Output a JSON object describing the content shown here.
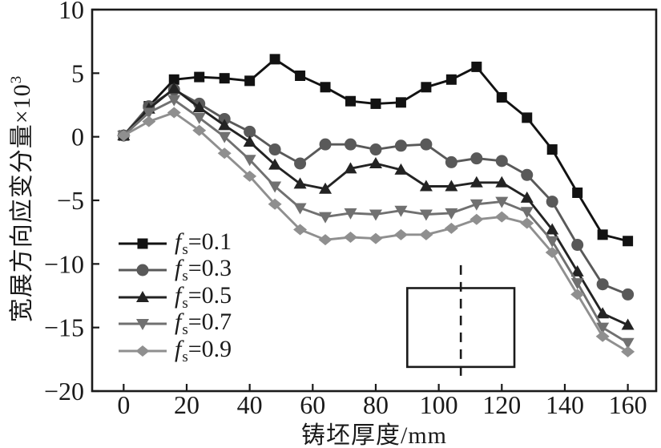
{
  "figure": {
    "background": "#ffffff",
    "axis_color": "#1a1a1a"
  },
  "chart_data": {
    "type": "line",
    "title": "",
    "xlabel": "铸坯厚度/mm",
    "ylabel": "宽展方向应变分量×10³",
    "ylabel_base": "宽展方向应变分量×10",
    "ylabel_exponent": "3",
    "xlim": [
      -10,
      169
    ],
    "ylim": [
      -20,
      10
    ],
    "xticks": [
      0,
      20,
      40,
      60,
      80,
      100,
      120,
      140,
      160
    ],
    "xtick_labels": [
      "0",
      "20",
      "40",
      "60",
      "80",
      "100",
      "120",
      "140",
      "160"
    ],
    "yticks": [
      10,
      5,
      0,
      -5,
      -10,
      -15,
      -20
    ],
    "ytick_labels": [
      "10",
      "5",
      "0",
      "−5",
      "−10",
      "−15",
      "−20"
    ],
    "grid": false,
    "legend_position": "inside-lower-left",
    "x": [
      0,
      8,
      16,
      24,
      32,
      40,
      48,
      56,
      64,
      72,
      80,
      88,
      96,
      104,
      112,
      120,
      128,
      136,
      144,
      152,
      160
    ],
    "series": [
      {
        "name": "fs=0.1",
        "legend": {
          "italic": "f",
          "subscript": "s",
          "rest": "=0.1"
        },
        "marker": "square",
        "color": "#121212",
        "values": [
          0.1,
          2.4,
          4.5,
          4.7,
          4.6,
          4.4,
          6.1,
          4.8,
          3.9,
          2.8,
          2.6,
          2.7,
          3.9,
          4.5,
          5.5,
          3.1,
          1.5,
          -1.0,
          -4.4,
          -7.7,
          -8.2
        ]
      },
      {
        "name": "fs=0.3",
        "legend": {
          "italic": "f",
          "subscript": "s",
          "rest": "=0.3"
        },
        "marker": "circle",
        "color": "#595959",
        "values": [
          0.1,
          2.4,
          3.7,
          2.6,
          1.4,
          0.4,
          -1.0,
          -2.1,
          -0.6,
          -0.6,
          -1.0,
          -0.7,
          -0.6,
          -2.0,
          -1.7,
          -1.9,
          -3.0,
          -5.1,
          -8.5,
          -11.6,
          -12.4
        ]
      },
      {
        "name": "fs=0.5",
        "legend": {
          "italic": "f",
          "subscript": "s",
          "rest": "=0.5"
        },
        "marker": "triangle-up",
        "color": "#232323",
        "values": [
          0.1,
          2.2,
          3.8,
          2.3,
          0.9,
          -0.4,
          -2.2,
          -3.7,
          -4.1,
          -2.5,
          -2.1,
          -2.6,
          -3.9,
          -3.9,
          -3.6,
          -3.6,
          -4.8,
          -7.3,
          -10.6,
          -13.9,
          -14.8
        ]
      },
      {
        "name": "fs=0.7",
        "legend": {
          "italic": "f",
          "subscript": "s",
          "rest": "=0.7"
        },
        "marker": "triangle-down",
        "color": "#707070",
        "values": [
          0.1,
          1.9,
          2.9,
          1.5,
          0.0,
          -1.8,
          -3.9,
          -5.6,
          -6.3,
          -6.0,
          -6.1,
          -5.8,
          -6.1,
          -6.0,
          -5.3,
          -5.1,
          -5.9,
          -8.2,
          -11.5,
          -15.0,
          -16.2
        ]
      },
      {
        "name": "fs=0.9",
        "legend": {
          "italic": "f",
          "subscript": "s",
          "rest": "=0.9"
        },
        "marker": "diamond",
        "color": "#8f8f8f",
        "values": [
          0.1,
          1.2,
          1.9,
          0.5,
          -1.3,
          -3.1,
          -5.3,
          -7.3,
          -8.1,
          -7.9,
          -8.0,
          -7.7,
          -7.7,
          -7.2,
          -6.5,
          -6.3,
          -6.8,
          -9.1,
          -12.4,
          -15.7,
          -16.9
        ]
      }
    ],
    "annotations": {
      "rectangle": {
        "x_range_mm": [
          90,
          124
        ],
        "y_range": [
          -18.1,
          -11.9
        ],
        "stroke": "#1a1a1a"
      },
      "dashed_line": {
        "x_mm": 107,
        "y_range": [
          -19.2,
          -10.1
        ],
        "stroke": "#1a1a1a"
      }
    }
  }
}
